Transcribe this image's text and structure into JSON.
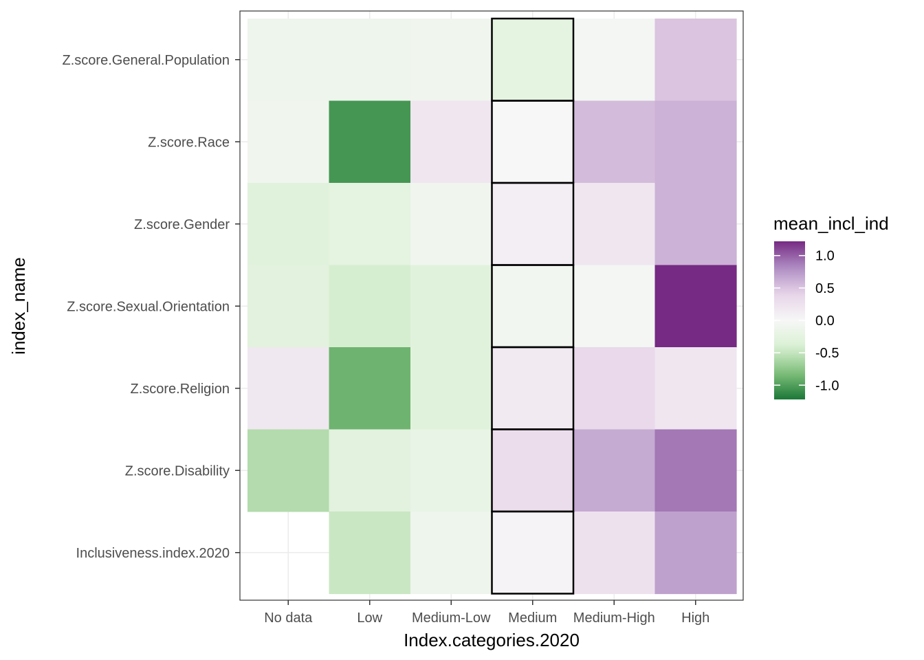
{
  "chart_data": {
    "type": "heatmap",
    "title": "",
    "xlabel": "Index.categories.2020",
    "ylabel": "index_name",
    "x_categories": [
      "No data",
      "Low",
      "Medium-Low",
      "Medium",
      "Medium-High",
      "High"
    ],
    "y_categories": [
      "Z.score.General.Population",
      "Z.score.Race",
      "Z.score.Gender",
      "Z.score.Sexual.Orientation",
      "Z.score.Religion",
      "Z.score.Disability",
      "Inclusiveness.index.2020"
    ],
    "values": [
      [
        -0.12,
        -0.12,
        -0.1,
        -0.25,
        -0.05,
        0.5
      ],
      [
        -0.1,
        -1.05,
        0.2,
        0.0,
        0.55,
        0.6
      ],
      [
        -0.3,
        -0.25,
        -0.1,
        0.1,
        0.2,
        0.6
      ],
      [
        -0.28,
        -0.42,
        -0.3,
        -0.08,
        -0.05,
        1.22
      ],
      [
        0.18,
        -0.88,
        -0.3,
        0.15,
        0.35,
        0.2
      ],
      [
        -0.58,
        -0.28,
        -0.2,
        0.3,
        0.65,
        0.9
      ],
      [
        null,
        -0.48,
        -0.12,
        0.05,
        0.25,
        0.7
      ]
    ],
    "highlighted_column": "Medium",
    "legend": {
      "title": "mean_incl_ind",
      "placement": "right",
      "range": [
        -1.22,
        1.22
      ],
      "ticks": [
        1.0,
        0.5,
        0.0,
        -0.5,
        -1.0
      ],
      "tick_labels": [
        "1.0",
        "0.5",
        "0.0",
        "-0.5",
        "-1.0"
      ],
      "colors": [
        "#276419",
        "#4d9221",
        "#7fbc41",
        "#b8e186",
        "#e6f5d0",
        "#f7f7f7",
        "#fde0ef",
        "#f1b6da",
        "#de77ae",
        "#c51b7d",
        "#8e0152"
      ],
      "palette": [
        "#1b7837",
        "#7fbf7b",
        "#d9f0d3",
        "#f7f7f7",
        "#e7d4e8",
        "#af8dc3",
        "#762a83"
      ]
    },
    "grid": true
  }
}
